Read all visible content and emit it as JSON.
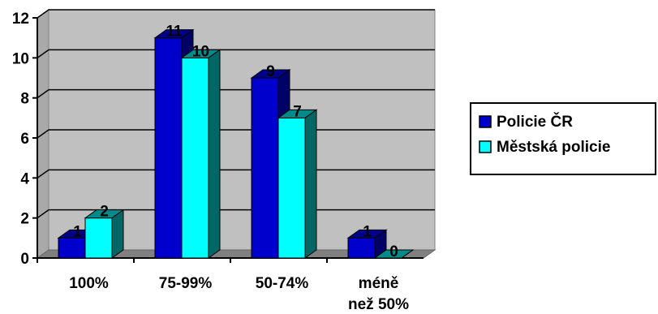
{
  "chart_data": {
    "type": "bar",
    "categories": [
      "100%",
      "75-99%",
      "50-74%",
      "méně\nnež 50%"
    ],
    "series": [
      {
        "name": "Policie ČR",
        "values": [
          1,
          11,
          9,
          1
        ],
        "color": "#0000cc",
        "side_color": "#000066",
        "top_color": "#00008b"
      },
      {
        "name": "Městská policie",
        "values": [
          2,
          10,
          7,
          0
        ],
        "color": "#00ffff",
        "side_color": "#006666",
        "top_color": "#008b8b"
      }
    ],
    "ylim": [
      0,
      12
    ],
    "yticks": [
      0,
      2,
      4,
      6,
      8,
      10,
      12
    ],
    "grid": true,
    "legend_position": "right",
    "plot_background": "#c0c0c0",
    "title": "",
    "xlabel": "",
    "ylabel": ""
  }
}
